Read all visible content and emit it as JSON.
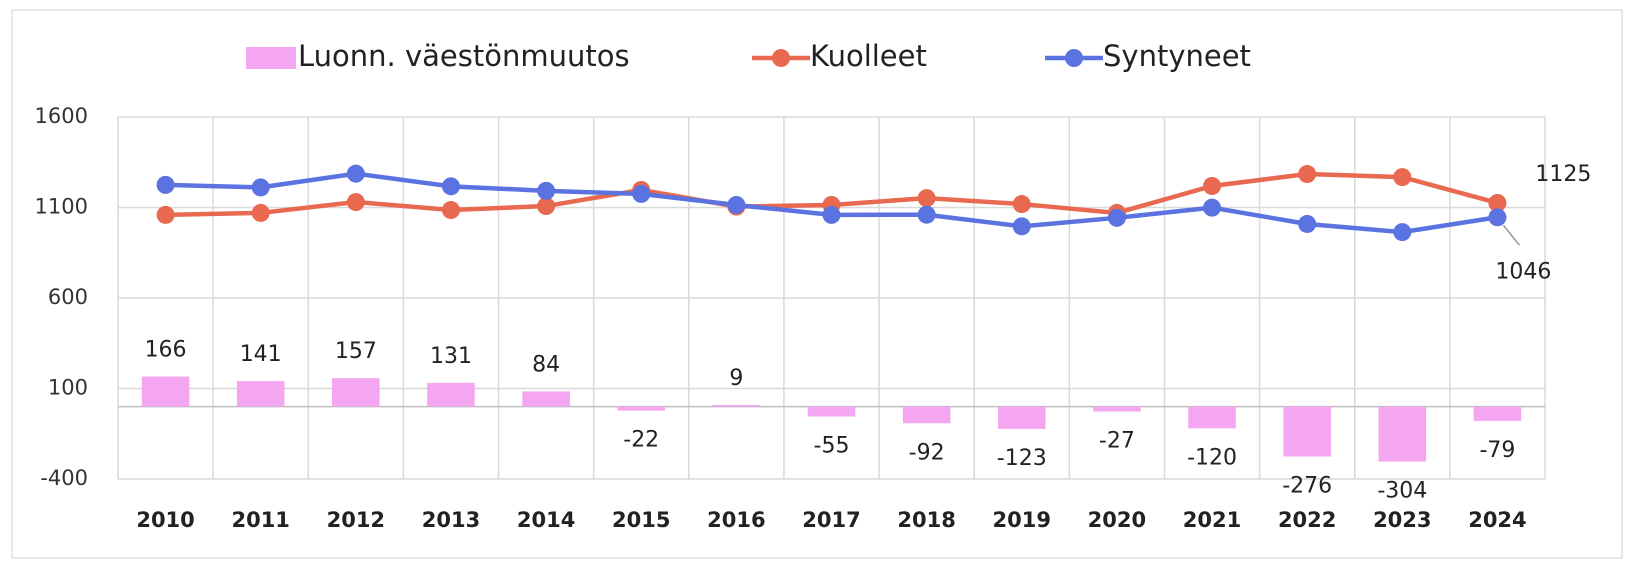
{
  "chart_data": {
    "type": "combo",
    "categories": [
      "2010",
      "2011",
      "2012",
      "2013",
      "2014",
      "2015",
      "2016",
      "2017",
      "2018",
      "2019",
      "2020",
      "2021",
      "2022",
      "2023",
      "2024"
    ],
    "series": [
      {
        "name": "Luonn. väestönmuutos",
        "type": "bar",
        "color": "#f4a6f0",
        "values": [
          166,
          141,
          157,
          131,
          84,
          -22,
          9,
          -55,
          -92,
          -123,
          -27,
          -120,
          -276,
          -304,
          -79
        ]
      },
      {
        "name": "Kuolleet",
        "type": "line",
        "color": "#e8694f",
        "values": [
          1059,
          1070,
          1130,
          1086,
          1108,
          1197,
          1105,
          1114,
          1152,
          1119,
          1070,
          1219,
          1285,
          1268,
          1125
        ]
      },
      {
        "name": "Syntyneet",
        "type": "line",
        "color": "#5b73e0",
        "values": [
          1225,
          1211,
          1287,
          1217,
          1192,
          1175,
          1114,
          1059,
          1060,
          996,
          1043,
          1099,
          1009,
          964,
          1046
        ]
      }
    ],
    "ylim": [
      -400,
      1600
    ],
    "yticks": [
      -400,
      100,
      600,
      1100,
      1600
    ],
    "grid": true,
    "legend": "top"
  }
}
